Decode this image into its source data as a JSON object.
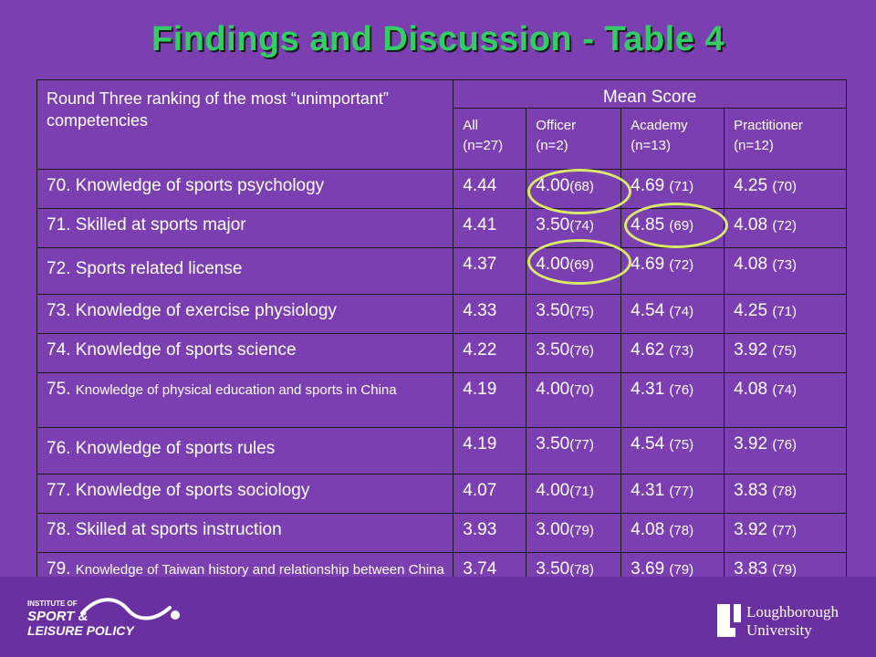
{
  "title": "Findings and Discussion - Table 4",
  "table": {
    "header_label": "Round Three ranking of the most “unimportant” competencies",
    "mean_score_label": "Mean Score",
    "columns": [
      {
        "name": "All",
        "n": "(n=27)"
      },
      {
        "name": "Officer",
        "n": "(n=2)"
      },
      {
        "name": "Academy",
        "n": "(n=13)"
      },
      {
        "name": "Practitioner",
        "n": "(n=12)"
      }
    ],
    "rows": [
      {
        "label": "70. Knowledge of sports psychology",
        "all": "4.44",
        "officer": "4.00",
        "officer_rank": "(68)",
        "academy": "4.69",
        "academy_rank": "(71)",
        "practitioner": "4.25",
        "practitioner_rank": "(70)"
      },
      {
        "label": "71. Skilled at sports major",
        "all": "4.41",
        "officer": "3.50",
        "officer_rank": "(74)",
        "academy": "4.85",
        "academy_rank": "(69)",
        "practitioner": "4.08",
        "practitioner_rank": "(72)"
      },
      {
        "label": "72. Sports related license",
        "all": "4.37",
        "officer": "4.00",
        "officer_rank": "(69)",
        "academy": "4.69",
        "academy_rank": "(72)",
        "practitioner": "4.08",
        "practitioner_rank": "(73)"
      },
      {
        "label": "73. Knowledge of exercise physiology",
        "all": "4.33",
        "officer": "3.50",
        "officer_rank": "(75)",
        "academy": "4.54",
        "academy_rank": "(74)",
        "practitioner": "4.25",
        "practitioner_rank": "(71)"
      },
      {
        "label": "74. Knowledge of sports science",
        "all": "4.22",
        "officer": "3.50",
        "officer_rank": "(76)",
        "academy": "4.62",
        "academy_rank": "(73)",
        "practitioner": "3.92",
        "practitioner_rank": "(75)"
      },
      {
        "label_num": "75.",
        "label_text": "Knowledge of physical education and sports in China",
        "all": "4.19",
        "officer": "4.00",
        "officer_rank": "(70)",
        "academy": "4.31",
        "academy_rank": "(76)",
        "practitioner": "4.08",
        "practitioner_rank": "(74)"
      },
      {
        "label": "76. Knowledge of sports rules",
        "all": "4.19",
        "officer": "3.50",
        "officer_rank": "(77)",
        "academy": "4.54",
        "academy_rank": "(75)",
        "practitioner": "3.92",
        "practitioner_rank": "(76)"
      },
      {
        "label": "77. Knowledge of sports sociology",
        "all": "4.07",
        "officer": "4.00",
        "officer_rank": "(71)",
        "academy": "4.31",
        "academy_rank": "(77)",
        "practitioner": "3.83",
        "practitioner_rank": "(78)"
      },
      {
        "label": "78. Skilled at sports instruction",
        "all": "3.93",
        "officer": "3.00",
        "officer_rank": "(79)",
        "academy": "4.08",
        "academy_rank": "(78)",
        "practitioner": "3.92",
        "practitioner_rank": "(77)"
      },
      {
        "label_num": "79.",
        "label_text": "Knowledge of Taiwan history and relationship between China and Taiwan",
        "all": "3.74",
        "officer": "3.50",
        "officer_rank": "(78)",
        "academy": "3.69",
        "academy_rank": "(79)",
        "practitioner": "3.83",
        "practitioner_rank": "(79)"
      }
    ]
  },
  "highlight_color": "#d9ea6a",
  "title_color": "#33cc66",
  "background_color": "#7b3fb2",
  "logos": {
    "left": {
      "line1": "INSTITUTE OF",
      "line2": "SPORT &",
      "line3": "LEISURE POLICY",
      "icon": "swoosh-icon"
    },
    "right": {
      "line1": "Loughborough",
      "line2": "University",
      "icon": "university-shield-icon"
    }
  }
}
